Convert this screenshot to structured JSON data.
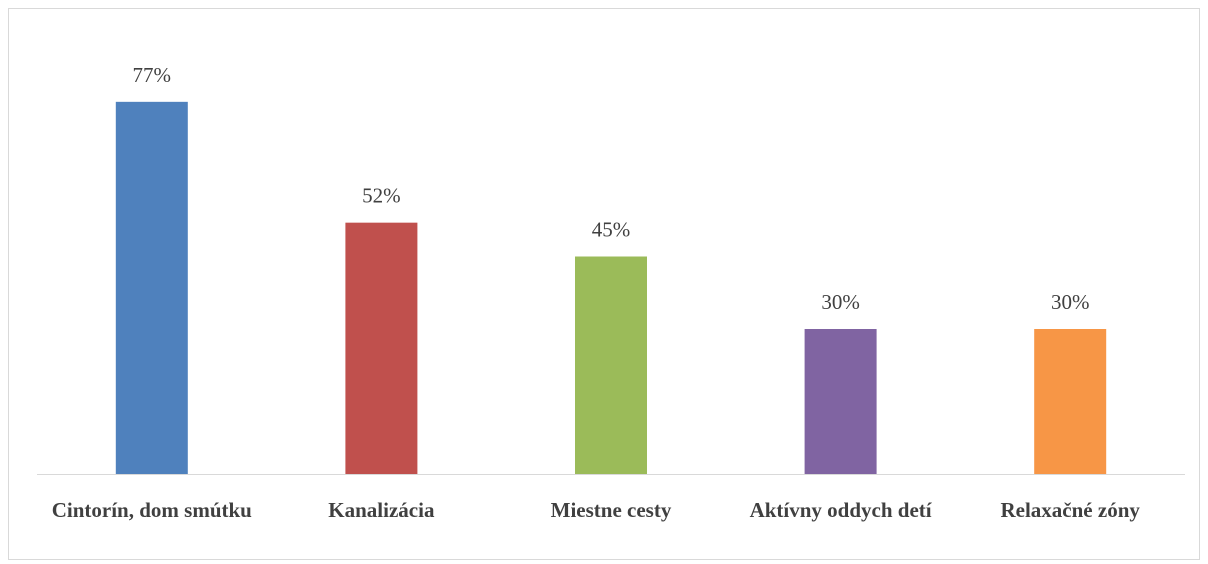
{
  "chart_data": {
    "type": "bar",
    "categories": [
      "Cintorín, dom smútku",
      "Kanalizácia",
      "Miestne cesty",
      "Aktívny oddych detí",
      "Relaxačné zóny"
    ],
    "values": [
      77,
      52,
      45,
      30,
      30
    ],
    "value_labels": [
      "77%",
      "52%",
      "45%",
      "30%",
      "30%"
    ],
    "colors": [
      "#4f81bd",
      "#c0504d",
      "#9bbb59",
      "#8064a2",
      "#f79646"
    ],
    "ylim": [
      0,
      90
    ]
  }
}
